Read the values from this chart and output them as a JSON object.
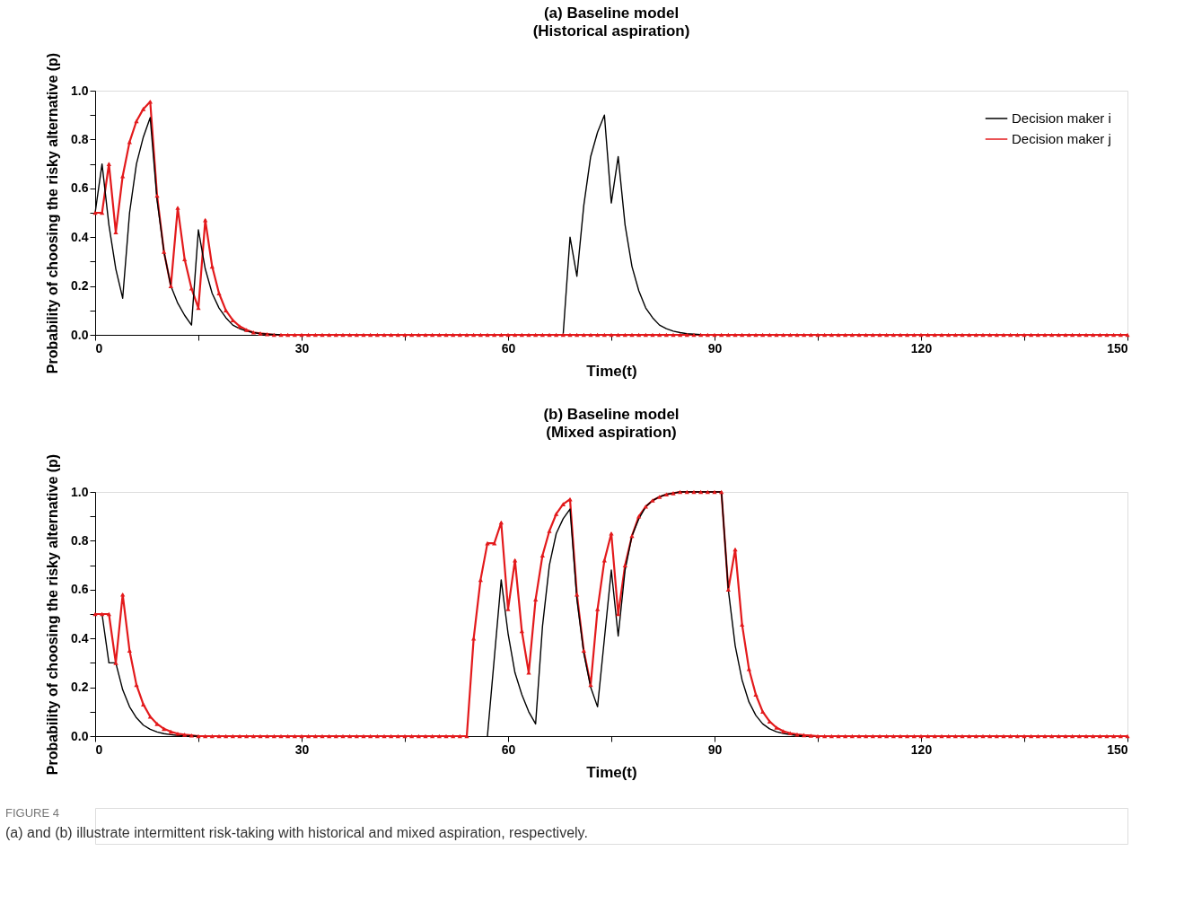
{
  "chart_data": [
    {
      "type": "line",
      "title": "(a) Baseline model",
      "subtitle": "(Historical aspiration)",
      "xlabel": "Time(t)",
      "ylabel": "Probability of choosing the risky alternative (p)",
      "legend": "top right",
      "x": [
        0,
        1,
        2,
        3,
        4,
        5,
        6,
        7,
        8,
        9,
        10,
        11,
        12,
        13,
        14,
        15,
        16,
        17,
        18,
        19,
        20,
        21,
        22,
        23,
        24,
        25,
        26,
        27,
        28,
        29,
        30,
        31,
        32,
        33,
        34,
        35,
        36,
        37,
        38,
        39,
        40,
        41,
        42,
        43,
        44,
        45,
        46,
        47,
        48,
        49,
        50,
        51,
        52,
        53,
        54,
        55,
        56,
        57,
        58,
        59,
        60,
        61,
        62,
        63,
        64,
        65,
        66,
        67,
        68,
        69,
        70,
        71,
        72,
        73,
        74,
        75,
        76,
        77,
        78,
        79,
        80,
        81,
        82,
        83,
        84,
        85,
        86,
        87,
        88,
        89,
        90,
        91,
        92,
        93,
        94,
        95,
        96,
        97,
        98,
        99,
        100,
        101,
        102,
        103,
        104,
        105,
        106,
        107,
        108,
        109,
        110,
        111,
        112,
        113,
        114,
        115,
        116,
        117,
        118,
        119,
        120,
        121,
        122,
        123,
        124,
        125,
        126,
        127,
        128,
        129,
        130,
        131,
        132,
        133,
        134,
        135,
        136,
        137,
        138,
        139,
        140,
        141,
        142,
        143,
        144,
        145,
        146,
        147,
        148,
        149,
        150
      ],
      "xlim": [
        0,
        150
      ],
      "ylim": [
        0,
        1.0
      ],
      "xticks": [
        0,
        {
          "value": 15,
          "label": null
        },
        30,
        {
          "value": 45,
          "label": null
        },
        60,
        {
          "value": 75,
          "label": null
        },
        90,
        {
          "value": 105,
          "label": null
        },
        120,
        {
          "value": 135,
          "label": null
        },
        150
      ],
      "yticks": [
        {
          "value": 0,
          "label": "0.0"
        },
        {
          "value": 0.1,
          "label": null
        },
        {
          "value": 0.2,
          "label": "0.2"
        },
        {
          "value": 0.3,
          "label": null
        },
        {
          "value": 0.4,
          "label": "0.4"
        },
        {
          "value": 0.5,
          "label": null
        },
        {
          "value": 0.6,
          "label": "0.6"
        },
        {
          "value": 0.7,
          "label": null
        },
        {
          "value": 0.8,
          "label": "0.8"
        },
        {
          "value": 0.9,
          "label": null
        },
        {
          "value": 1.0,
          "label": "1.0"
        }
      ],
      "series": [
        {
          "name": "Decision maker i",
          "color": "#000000",
          "marker": "none",
          "values": [
            0.5,
            0.7,
            0.45,
            0.27,
            0.15,
            0.5,
            0.7,
            0.81,
            0.89,
            0.55,
            0.34,
            0.2,
            0.13,
            0.08,
            0.04,
            0.43,
            0.27,
            0.17,
            0.11,
            0.07,
            0.04,
            0.025,
            0.015,
            0.009,
            0.005,
            0.003,
            0.002,
            0,
            null,
            null,
            null,
            null,
            null,
            null,
            null,
            null,
            null,
            null,
            null,
            null,
            null,
            null,
            null,
            null,
            null,
            null,
            null,
            null,
            null,
            null,
            null,
            null,
            null,
            null,
            null,
            null,
            null,
            null,
            null,
            null,
            null,
            null,
            null,
            null,
            null,
            null,
            null,
            null,
            0,
            0.4,
            0.24,
            0.53,
            0.73,
            0.83,
            0.9,
            0.54,
            0.73,
            0.45,
            0.28,
            0.18,
            0.11,
            0.07,
            0.04,
            0.025,
            0.015,
            0.009,
            0.005,
            0.003,
            0.001,
            null,
            null,
            null,
            null,
            null,
            null,
            null,
            null,
            null,
            null,
            null,
            null,
            null,
            null,
            null,
            null,
            null,
            null,
            null,
            null,
            null,
            null,
            null,
            null,
            null,
            null,
            null,
            null,
            null,
            null,
            null,
            null,
            null,
            null,
            null,
            null,
            null,
            null,
            null,
            null,
            null,
            null,
            null,
            null,
            null,
            null,
            null,
            null,
            null,
            null,
            null,
            null,
            null,
            null,
            null,
            null,
            null,
            null,
            null,
            null,
            null,
            null
          ]
        },
        {
          "name": "Decision maker j",
          "color": "#e31a1c",
          "marker": "triangle",
          "values": [
            0.5,
            0.5,
            0.7,
            0.42,
            0.65,
            0.79,
            0.875,
            0.925,
            0.955,
            0.57,
            0.34,
            0.2,
            0.52,
            0.31,
            0.19,
            0.11,
            0.47,
            0.28,
            0.17,
            0.1,
            0.06,
            0.035,
            0.02,
            0.01,
            0.006,
            0.003,
            0,
            0,
            0,
            0,
            0,
            0,
            0,
            0,
            0,
            0,
            0,
            0,
            0,
            0,
            0,
            0,
            0,
            0,
            0,
            0,
            0,
            0,
            0,
            0,
            0,
            0,
            0,
            0,
            0,
            0,
            0,
            0,
            0,
            0,
            0,
            0,
            0,
            0,
            0,
            0,
            0,
            0,
            0,
            0,
            0,
            0,
            0,
            0,
            0,
            0,
            0,
            0,
            0,
            0,
            0,
            0,
            0,
            0,
            0,
            0,
            0,
            0,
            0,
            0,
            0,
            0,
            0,
            0,
            0,
            0,
            0,
            0,
            0,
            0,
            0,
            0,
            0,
            0,
            0,
            0,
            0,
            0,
            0,
            0,
            0,
            0,
            0,
            0,
            0,
            0,
            0,
            0,
            0,
            0,
            0,
            0,
            0,
            0,
            0,
            0,
            0,
            0,
            0,
            0,
            0,
            0,
            0,
            0,
            0,
            0,
            0,
            0,
            0,
            0,
            0,
            0,
            0,
            0,
            0,
            0,
            0,
            0,
            0,
            0,
            0
          ]
        }
      ]
    },
    {
      "type": "line",
      "title": "(b) Baseline model",
      "subtitle": "(Mixed aspiration)",
      "xlabel": "Time(t)",
      "ylabel": "Probability of choosing the risky alternative (p)",
      "legend": "top right",
      "x": [
        0,
        1,
        2,
        3,
        4,
        5,
        6,
        7,
        8,
        9,
        10,
        11,
        12,
        13,
        14,
        15,
        16,
        17,
        18,
        19,
        20,
        21,
        22,
        23,
        24,
        25,
        26,
        27,
        28,
        29,
        30,
        31,
        32,
        33,
        34,
        35,
        36,
        37,
        38,
        39,
        40,
        41,
        42,
        43,
        44,
        45,
        46,
        47,
        48,
        49,
        50,
        51,
        52,
        53,
        54,
        55,
        56,
        57,
        58,
        59,
        60,
        61,
        62,
        63,
        64,
        65,
        66,
        67,
        68,
        69,
        70,
        71,
        72,
        73,
        74,
        75,
        76,
        77,
        78,
        79,
        80,
        81,
        82,
        83,
        84,
        85,
        86,
        87,
        88,
        89,
        90,
        91,
        92,
        93,
        94,
        95,
        96,
        97,
        98,
        99,
        100,
        101,
        102,
        103,
        104,
        105,
        106,
        107,
        108,
        109,
        110,
        111,
        112,
        113,
        114,
        115,
        116,
        117,
        118,
        119,
        120,
        121,
        122,
        123,
        124,
        125,
        126,
        127,
        128,
        129,
        130,
        131,
        132,
        133,
        134,
        135,
        136,
        137,
        138,
        139,
        140,
        141,
        142,
        143,
        144,
        145,
        146,
        147,
        148,
        149,
        150
      ],
      "xlim": [
        0,
        150
      ],
      "ylim": [
        0,
        1.0
      ],
      "xticks": [
        0,
        {
          "value": 15,
          "label": null
        },
        30,
        {
          "value": 45,
          "label": null
        },
        60,
        {
          "value": 75,
          "label": null
        },
        90,
        {
          "value": 105,
          "label": null
        },
        120,
        {
          "value": 135,
          "label": null
        },
        150
      ],
      "yticks": [
        {
          "value": 0,
          "label": "0.0"
        },
        {
          "value": 0.1,
          "label": null
        },
        {
          "value": 0.2,
          "label": "0.2"
        },
        {
          "value": 0.3,
          "label": null
        },
        {
          "value": 0.4,
          "label": "0.4"
        },
        {
          "value": 0.5,
          "label": null
        },
        {
          "value": 0.6,
          "label": "0.6"
        },
        {
          "value": 0.7,
          "label": null
        },
        {
          "value": 0.8,
          "label": "0.8"
        },
        {
          "value": 0.9,
          "label": null
        },
        {
          "value": 1.0,
          "label": "1.0"
        }
      ],
      "annotations": [
        "FIGURE 4",
        "(a) and (b) illustrate intermittent risk-taking with historical and mixed aspiration, respectively."
      ],
      "series": [
        {
          "name": "Decision maker i",
          "color": "#000000",
          "marker": "none",
          "values": [
            null,
            0.5,
            0.3,
            0.3,
            0.19,
            0.12,
            0.075,
            0.045,
            0.028,
            0.017,
            0.01,
            0.006,
            0.003,
            0,
            0,
            0,
            null,
            null,
            null,
            null,
            null,
            null,
            null,
            null,
            null,
            null,
            null,
            null,
            null,
            null,
            null,
            null,
            null,
            null,
            null,
            null,
            null,
            null,
            null,
            null,
            null,
            null,
            null,
            null,
            null,
            null,
            null,
            null,
            null,
            null,
            null,
            null,
            null,
            null,
            null,
            null,
            null,
            0,
            0.32,
            0.64,
            0.42,
            0.26,
            0.17,
            0.1,
            0.05,
            0.45,
            0.7,
            0.83,
            0.89,
            0.93,
            0.56,
            0.34,
            0.2,
            0.12,
            0.4,
            0.68,
            0.41,
            0.68,
            0.82,
            0.89,
            0.94,
            0.965,
            0.98,
            0.99,
            0.995,
            1,
            1,
            1,
            1,
            1,
            1,
            1,
            0.6,
            0.37,
            0.23,
            0.14,
            0.085,
            0.05,
            0.03,
            0.018,
            0.011,
            0.006,
            0.003,
            0,
            null,
            null,
            null,
            null,
            null,
            null,
            null,
            null,
            null,
            null,
            null,
            null,
            null,
            null,
            null,
            null,
            null,
            null,
            null,
            null,
            null,
            null,
            null,
            null,
            null,
            null,
            null,
            null,
            null,
            null,
            null,
            null,
            null,
            null,
            null,
            null,
            null,
            null,
            null,
            null,
            null,
            null,
            null,
            null,
            null,
            null,
            null
          ]
        },
        {
          "name": "Decision maker j",
          "color": "#e31a1c",
          "marker": "triangle",
          "values": [
            0.5,
            0.5,
            0.5,
            0.3,
            0.58,
            0.35,
            0.21,
            0.13,
            0.08,
            0.05,
            0.03,
            0.018,
            0.01,
            0.006,
            0.003,
            0,
            0,
            0,
            0,
            0,
            0,
            0,
            0,
            0,
            0,
            0,
            0,
            0,
            0,
            0,
            0,
            0,
            0,
            0,
            0,
            0,
            0,
            0,
            0,
            0,
            0,
            0,
            0,
            0,
            0,
            0,
            0,
            0,
            0,
            0,
            0,
            0,
            0,
            0,
            0,
            0.4,
            0.64,
            0.79,
            0.79,
            0.875,
            0.52,
            0.72,
            0.43,
            0.26,
            0.56,
            0.74,
            0.84,
            0.91,
            0.95,
            0.97,
            0.58,
            0.35,
            0.21,
            0.52,
            0.72,
            0.83,
            0.5,
            0.7,
            0.82,
            0.9,
            0.94,
            0.965,
            0.98,
            0.99,
            0.995,
            1,
            1,
            1,
            1,
            1,
            1,
            1,
            0.6,
            0.765,
            0.457,
            0.275,
            0.17,
            0.1,
            0.06,
            0.035,
            0.02,
            0.012,
            0.007,
            0.004,
            0.002,
            0,
            0,
            0,
            0,
            0,
            0,
            0,
            0,
            0,
            0,
            0,
            0,
            0,
            0,
            0,
            0,
            0,
            0,
            0,
            0,
            0,
            0,
            0,
            0,
            0,
            0,
            0,
            0,
            0,
            0,
            0,
            0,
            0,
            0,
            0,
            0,
            0,
            0,
            0,
            0,
            0,
            0,
            0,
            0,
            0,
            0
          ]
        }
      ]
    }
  ]
}
